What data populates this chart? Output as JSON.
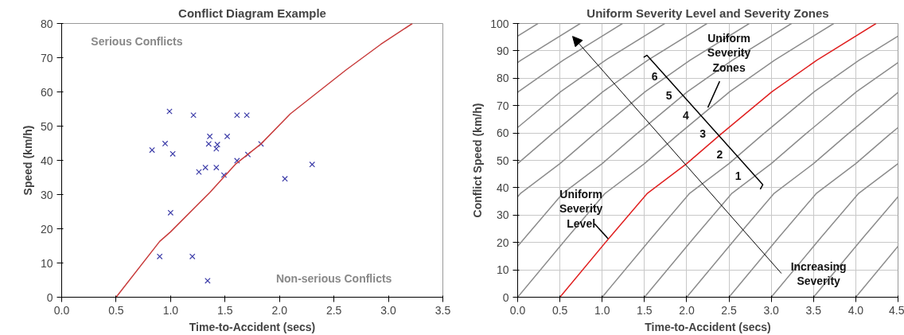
{
  "chart_data": [
    {
      "type": "scatter",
      "title": "Conflict Diagram Example",
      "xlabel": "Time-to-Accident (secs)",
      "ylabel": "Speed (km/h)",
      "xlim": [
        0,
        3.5
      ],
      "ylim": [
        0,
        80
      ],
      "xticks": [
        {
          "value": 0,
          "label": "0.0"
        },
        {
          "value": 0.5,
          "label": "0.5"
        },
        {
          "value": 1,
          "label": "1.0"
        },
        {
          "value": 1.5,
          "label": "1.5"
        },
        {
          "value": 2,
          "label": "2.0"
        },
        {
          "value": 2.5,
          "label": "2.5"
        },
        {
          "value": 3,
          "label": "3.0"
        },
        {
          "value": 3.5,
          "label": "3.5"
        }
      ],
      "yticks": [
        0,
        10,
        20,
        30,
        40,
        50,
        60,
        70,
        80
      ],
      "grid": false,
      "annotations": [
        "Serious Conflicts",
        "Non-serious Conflicts"
      ],
      "series": [
        {
          "type": "scatter",
          "marker": "cross",
          "color": "#3c3ca8",
          "x": [
            0.99,
            0.83,
            0.95,
            1.02,
            1.21,
            1.26,
            1.32,
            1.36,
            1.35,
            1.42,
            1.43,
            1.42,
            1.49,
            1.52,
            1.61,
            1.61,
            1.7,
            1.0,
            0.9,
            1.2,
            1.34,
            1.71,
            1.83,
            2.05,
            2.3
          ],
          "values": [
            54.3,
            43,
            44.9,
            41.9,
            53.2,
            36.6,
            37.9,
            47,
            44.8,
            43.4,
            44.6,
            37.9,
            35.7,
            47,
            53.2,
            39.9,
            53.2,
            24.7,
            11.9,
            11.9,
            4.8,
            41.7,
            44.8,
            34.6,
            38.8
          ]
        },
        {
          "type": "line",
          "color": "#c83c3c",
          "x": [
            0.5,
            0.9,
            1.0,
            1.36,
            1.6,
            1.83,
            2.1,
            2.61,
            2.93,
            3.22
          ],
          "values": [
            0,
            16.3,
            19.1,
            30.6,
            39,
            44.8,
            53.6,
            66.4,
            73.9,
            80
          ]
        }
      ]
    },
    {
      "type": "line",
      "title": "Uniform Severity Level and Severity Zones",
      "xlabel": "Time-to-Accident (secs)",
      "ylabel": "Conflict Speed (km/h)",
      "xlim": [
        0,
        4.5
      ],
      "ylim": [
        0,
        100
      ],
      "xticks": [
        {
          "value": 0,
          "label": "0.0"
        },
        {
          "value": 0.5,
          "label": "0.5"
        },
        {
          "value": 1,
          "label": "1.0"
        },
        {
          "value": 1.5,
          "label": "1.5"
        },
        {
          "value": 2,
          "label": "2.0"
        },
        {
          "value": 2.5,
          "label": "2.5"
        },
        {
          "value": 3,
          "label": "3.0"
        },
        {
          "value": 3.5,
          "label": "3.5"
        },
        {
          "value": 4,
          "label": "4.0"
        },
        {
          "value": 4.5,
          "label": "4.5"
        }
      ],
      "yticks": [
        0,
        10,
        20,
        30,
        40,
        50,
        60,
        70,
        80,
        90,
        100
      ],
      "grid": true,
      "annotations": [
        {
          "text": "Uniform\nSeverity\nZones",
          "x": 2.25,
          "y": 69.3
        },
        "6",
        "5",
        "4",
        "3",
        "2",
        "1",
        {
          "text": "Uniform\nSeverity\nLevel",
          "x": 1.07,
          "y": 21.4
        },
        "Increasing\nSeverity"
      ],
      "series": [
        {
          "color": "#8c8c8c",
          "x": [
            0,
            0.24
          ],
          "values": [
            95.4,
            100
          ]
        },
        {
          "color": "#8c8c8c",
          "x": [
            0,
            0.04,
            0.74
          ],
          "values": [
            85.7,
            86.6,
            100
          ]
        },
        {
          "color": "#8c8c8c",
          "x": [
            0,
            0.01,
            0.54,
            1.24
          ],
          "values": [
            74.8,
            75.1,
            86.6,
            100
          ]
        },
        {
          "color": "#8c8c8c",
          "x": [
            0,
            0.51,
            1.04,
            1.74
          ],
          "values": [
            62.0,
            75.1,
            86.6,
            100
          ]
        },
        {
          "color": "#8c8c8c",
          "x": [
            0,
            0.39,
            1.01,
            1.54,
            2.24
          ],
          "values": [
            48.8,
            59.2,
            75.1,
            86.6,
            100
          ]
        },
        {
          "color": "#8c8c8c",
          "x": [
            0,
            0.03,
            0.5,
            0.89,
            1.51,
            2.04,
            2.74
          ],
          "values": [
            36.7,
            37.8,
            48.8,
            59.2,
            75.1,
            86.6,
            100
          ]
        },
        {
          "color": "#8c8c8c",
          "x": [
            0,
            0.09,
            0.53,
            1.0,
            1.39,
            2.01,
            2.54,
            3.24
          ],
          "values": [
            18.6,
            21.9,
            37.8,
            48.8,
            59.2,
            75.1,
            86.6,
            100
          ]
        },
        {
          "color": "#8c8c8c",
          "x": [
            0,
            0.59,
            1.03,
            1.5,
            1.89,
            2.51,
            3.04,
            3.74
          ],
          "values": [
            0,
            21.9,
            37.8,
            48.8,
            59.2,
            75.1,
            86.6,
            100
          ]
        },
        {
          "color": "#8c8c8c",
          "x": [
            1.0,
            1.59,
            2.03,
            2.5,
            2.89,
            3.51,
            4.04,
            4.5
          ],
          "values": [
            0,
            21.9,
            37.8,
            48.8,
            59.2,
            75.1,
            86.6,
            95.4
          ]
        },
        {
          "color": "#8c8c8c",
          "x": [
            1.5,
            2.09,
            2.53,
            3.0,
            3.39,
            4.01,
            4.5
          ],
          "values": [
            0,
            21.9,
            37.8,
            48.8,
            59.2,
            75.1,
            85.7
          ]
        },
        {
          "color": "#8c8c8c",
          "x": [
            2.0,
            2.59,
            3.03,
            3.5,
            3.89,
            4.5
          ],
          "values": [
            0,
            21.9,
            37.8,
            48.8,
            59.2,
            74.8
          ]
        },
        {
          "color": "#8c8c8c",
          "x": [
            2.5,
            3.09,
            3.53,
            4.0,
            4.39,
            4.5
          ],
          "values": [
            0,
            21.9,
            37.8,
            48.8,
            59.2,
            62.0
          ]
        },
        {
          "color": "#8c8c8c",
          "x": [
            3.0,
            3.59,
            4.03,
            4.5
          ],
          "values": [
            0,
            21.9,
            37.8,
            48.8
          ]
        },
        {
          "color": "#8c8c8c",
          "x": [
            3.5,
            4.09,
            4.5
          ],
          "values": [
            0,
            21.9,
            36.7
          ]
        },
        {
          "color": "#8c8c8c",
          "x": [
            4.0,
            4.5
          ],
          "values": [
            0,
            18.6
          ]
        },
        {
          "color": "#e02020",
          "x": [
            0.5,
            1.09,
            1.53,
            2.0,
            2.39,
            3.01,
            3.54,
            4.24
          ],
          "values": [
            0,
            21.9,
            37.8,
            48.8,
            59.2,
            75.1,
            86.6,
            100
          ]
        },
        {
          "color": "#000000",
          "x": [
            1.49,
            1.53,
            2.9,
            2.87
          ],
          "values": [
            87.6,
            88.4,
            41.1,
            39.4
          ]
        }
      ]
    }
  ]
}
